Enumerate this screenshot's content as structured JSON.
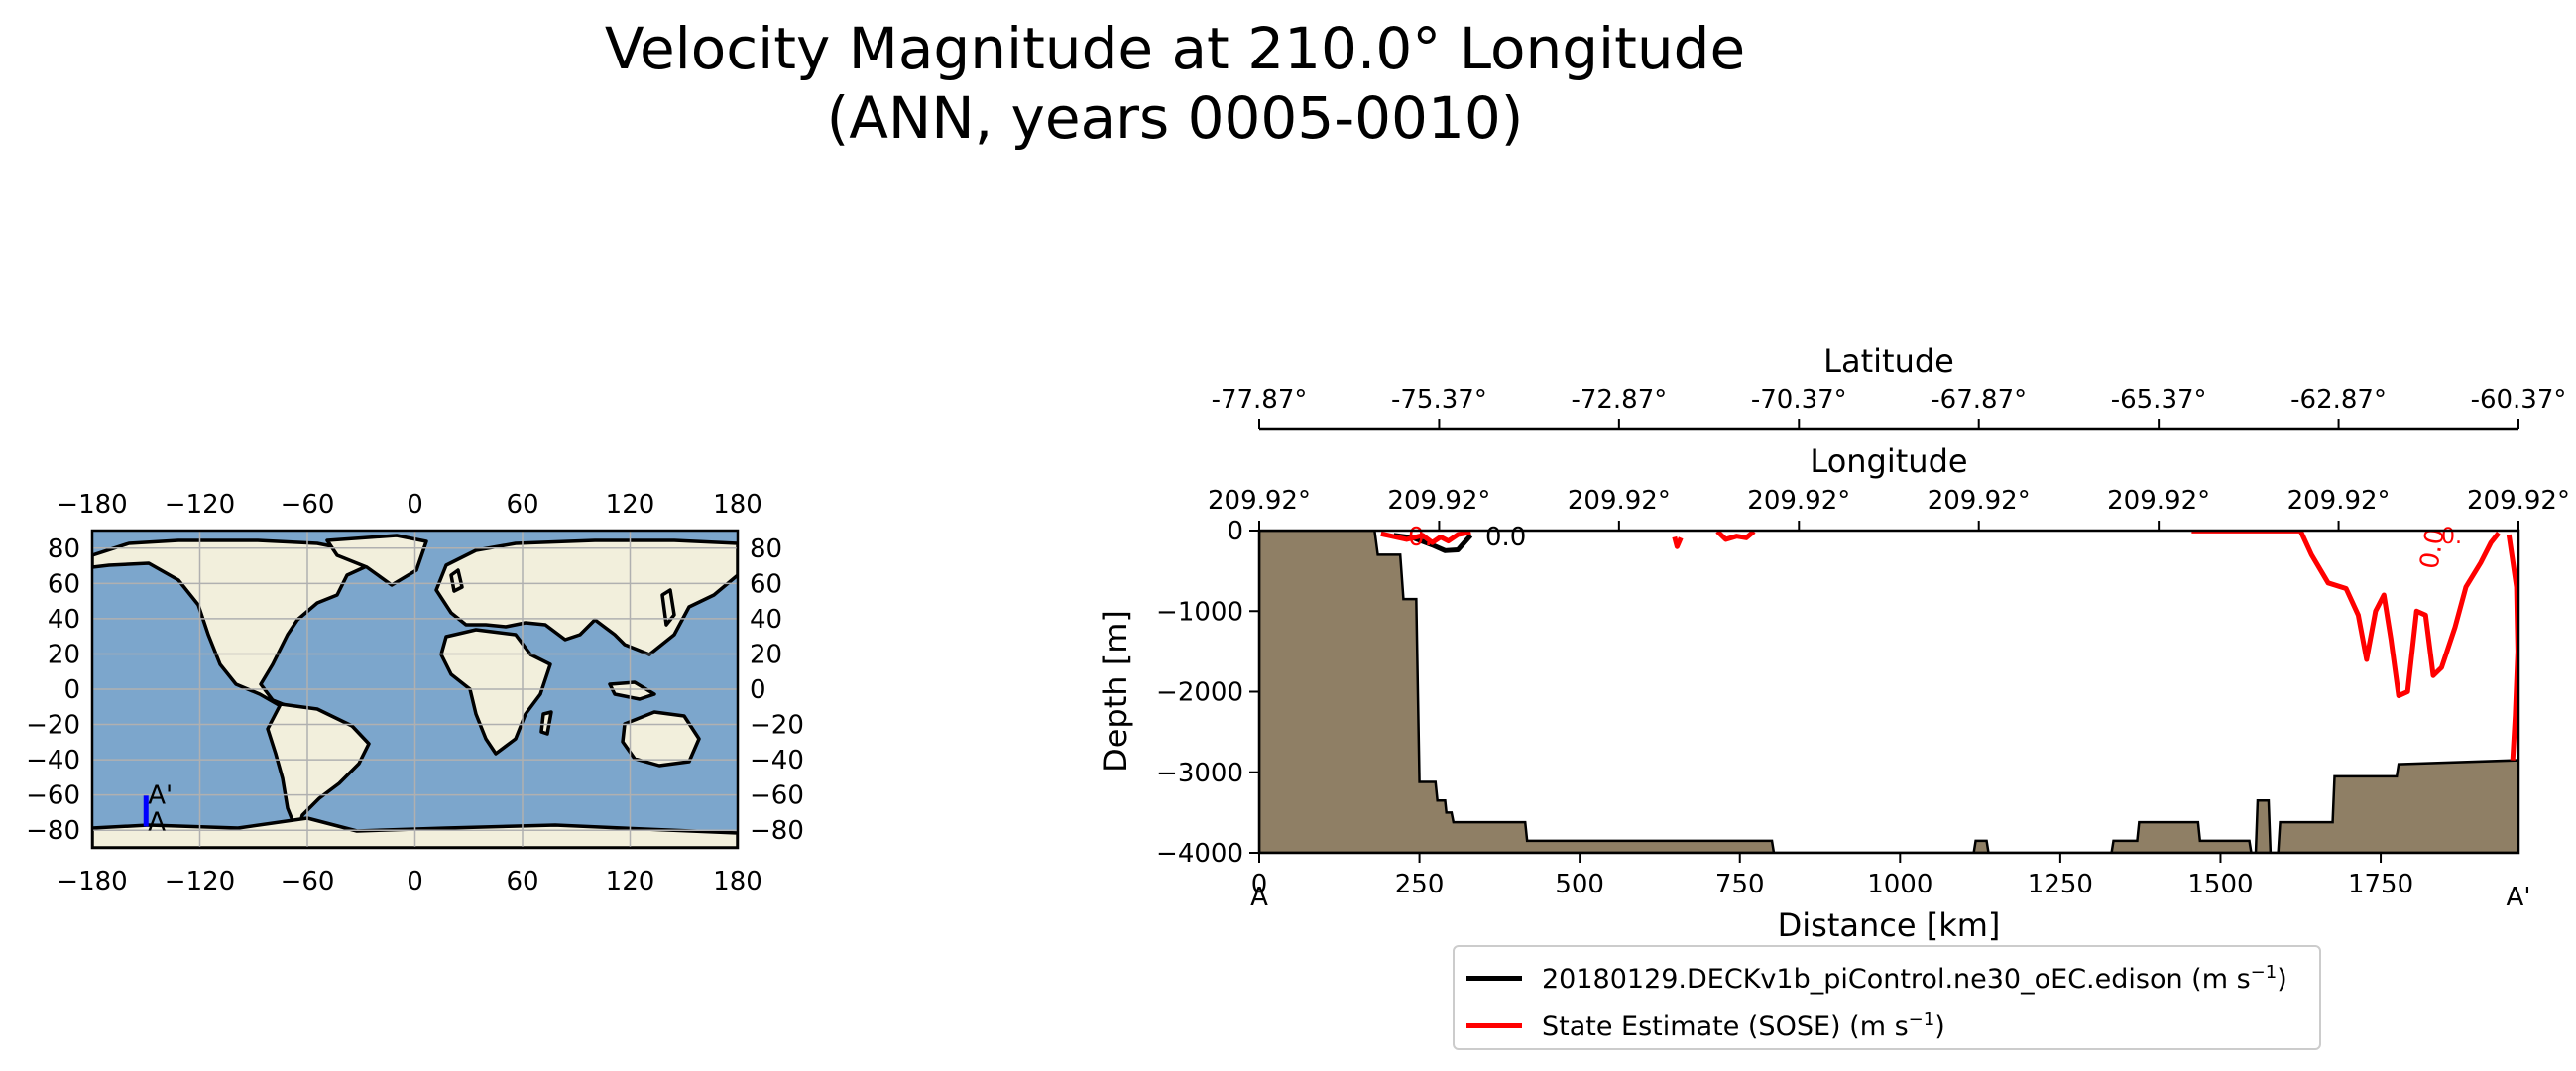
{
  "title": {
    "line1": "Velocity Magnitude at 210.0° Longitude",
    "line2": "(ANN, years 0005-0010)"
  },
  "chart_data": [
    {
      "type": "map",
      "name": "locator map",
      "x_ticks": [
        -180,
        -120,
        -60,
        0,
        60,
        120,
        180
      ],
      "x_tick_labels": [
        "−180",
        "−120",
        "−60",
        "0",
        "60",
        "120",
        "180"
      ],
      "y_ticks": [
        80,
        60,
        40,
        20,
        0,
        -20,
        -40,
        -60,
        -80
      ],
      "y_tick_labels": [
        "80",
        "60",
        "40",
        "20",
        "0",
        "−20",
        "−40",
        "−60",
        "−80"
      ],
      "xlim": [
        -180,
        180
      ],
      "ylim": [
        -90,
        90
      ],
      "transect": {
        "start_label": "A",
        "end_label": "A'",
        "lon": -150,
        "lat_start": -77.87,
        "lat_end": -60.37,
        "color": "#0000ff"
      },
      "ocean_color": "#7ca6cc",
      "land_color": "#f2efdc"
    },
    {
      "type": "contour",
      "name": "transect section",
      "xlabel": "Distance [km]",
      "ylabel": "Depth [m]",
      "xlim": [
        0,
        1965
      ],
      "ylim": [
        -4000,
        0
      ],
      "x_ticks": [
        0,
        250,
        500,
        750,
        1000,
        1250,
        1500,
        1750
      ],
      "x_tick_labels": [
        "0",
        "250",
        "500",
        "750",
        "1000",
        "1250",
        "1500",
        "1750"
      ],
      "y_ticks": [
        0,
        -1000,
        -2000,
        -3000,
        -4000
      ],
      "y_tick_labels": [
        "0",
        "−1000",
        "−2000",
        "−3000",
        "−4000"
      ],
      "section_start_label": "A",
      "section_end_label": "A'",
      "latitude_axis": {
        "label": "Latitude",
        "tick_labels": [
          "-77.87°",
          "-75.37°",
          "-72.87°",
          "-70.37°",
          "-67.87°",
          "-65.37°",
          "-62.87°",
          "-60.37°"
        ]
      },
      "longitude_axis": {
        "label": "Longitude",
        "tick_labels": [
          "209.92°",
          "209.92°",
          "209.92°",
          "209.92°",
          "209.92°",
          "209.92°",
          "209.92°",
          "209.92°"
        ]
      },
      "bathymetry": [
        [
          0,
          0
        ],
        [
          180,
          0
        ],
        [
          185,
          -300
        ],
        [
          220,
          -300
        ],
        [
          225,
          -850
        ],
        [
          245,
          -850
        ],
        [
          250,
          -3120
        ],
        [
          275,
          -3120
        ],
        [
          278,
          -3350
        ],
        [
          290,
          -3350
        ],
        [
          292,
          -3500
        ],
        [
          300,
          -3500
        ],
        [
          303,
          -3620
        ],
        [
          415,
          -3620
        ],
        [
          418,
          -3850
        ],
        [
          800,
          -3850
        ],
        [
          803,
          -4000
        ],
        [
          1115,
          -4000
        ],
        [
          1118,
          -3850
        ],
        [
          1135,
          -3850
        ],
        [
          1138,
          -4000
        ],
        [
          1330,
          -4000
        ],
        [
          1333,
          -3850
        ],
        [
          1370,
          -3850
        ],
        [
          1373,
          -3620
        ],
        [
          1465,
          -3620
        ],
        [
          1468,
          -3850
        ],
        [
          1545,
          -3850
        ],
        [
          1548,
          -4000
        ],
        [
          1555,
          -4000
        ],
        [
          1558,
          -3350
        ],
        [
          1575,
          -3350
        ],
        [
          1578,
          -4000
        ],
        [
          1590,
          -4000
        ],
        [
          1593,
          -3620
        ],
        [
          1675,
          -3620
        ],
        [
          1678,
          -3050
        ],
        [
          1775,
          -3050
        ],
        [
          1778,
          -2900
        ],
        [
          1965,
          -2850
        ],
        [
          1965,
          -4000
        ],
        [
          0,
          -4000
        ]
      ],
      "bathymetry_color": "#8f7f65",
      "series": [
        {
          "name": "20180129.DECKv1b_piControl.ne30_oEC.edison",
          "units": "m s",
          "exponent": "−1",
          "color": "#000000",
          "contour_labels": [
            "0.0"
          ],
          "contours": [
            [
              [
                210,
                -60
              ],
              [
                240,
                -90
              ],
              [
                270,
                -180
              ],
              [
                290,
                -250
              ],
              [
                310,
                -240
              ],
              [
                320,
                -150
              ],
              [
                330,
                -60
              ]
            ]
          ]
        },
        {
          "name": "State Estimate (SOSE)",
          "units": "m s",
          "exponent": "−1",
          "color": "#ff0000",
          "contour_labels": [
            "0.",
            "0.",
            "0.0"
          ],
          "contours": [
            [
              [
                190,
                -40
              ],
              [
                230,
                -110
              ],
              [
                255,
                -60
              ],
              [
                270,
                -150
              ],
              [
                283,
                -80
              ],
              [
                295,
                -130
              ],
              [
                310,
                -50
              ],
              [
                330,
                -20
              ]
            ],
            [
              [
                648,
                -80
              ],
              [
                652,
                -200
              ],
              [
                658,
                -90
              ]
            ],
            [
              [
                715,
                -10
              ],
              [
                728,
                -110
              ],
              [
                745,
                -70
              ],
              [
                760,
                -90
              ],
              [
                772,
                -10
              ]
            ],
            [
              [
                1455,
                -5
              ],
              [
                1625,
                -5
              ],
              [
                1642,
                -300
              ],
              [
                1668,
                -650
              ],
              [
                1696,
                -720
              ],
              [
                1715,
                -1050
              ],
              [
                1728,
                -1600
              ],
              [
                1742,
                -1000
              ],
              [
                1755,
                -800
              ],
              [
                1766,
                -1350
              ],
              [
                1778,
                -2050
              ],
              [
                1792,
                -2000
              ],
              [
                1806,
                -1000
              ],
              [
                1820,
                -1050
              ],
              [
                1832,
                -1800
              ],
              [
                1845,
                -1700
              ],
              [
                1866,
                -1200
              ],
              [
                1883,
                -700
              ],
              [
                1906,
                -400
              ],
              [
                1922,
                -150
              ],
              [
                1934,
                -30
              ]
            ],
            [
              [
                1950,
                -50
              ],
              [
                1962,
                -700
              ],
              [
                1964,
                -1500
              ],
              [
                1960,
                -2300
              ],
              [
                1956,
                -2850
              ]
            ]
          ]
        }
      ]
    }
  ]
}
